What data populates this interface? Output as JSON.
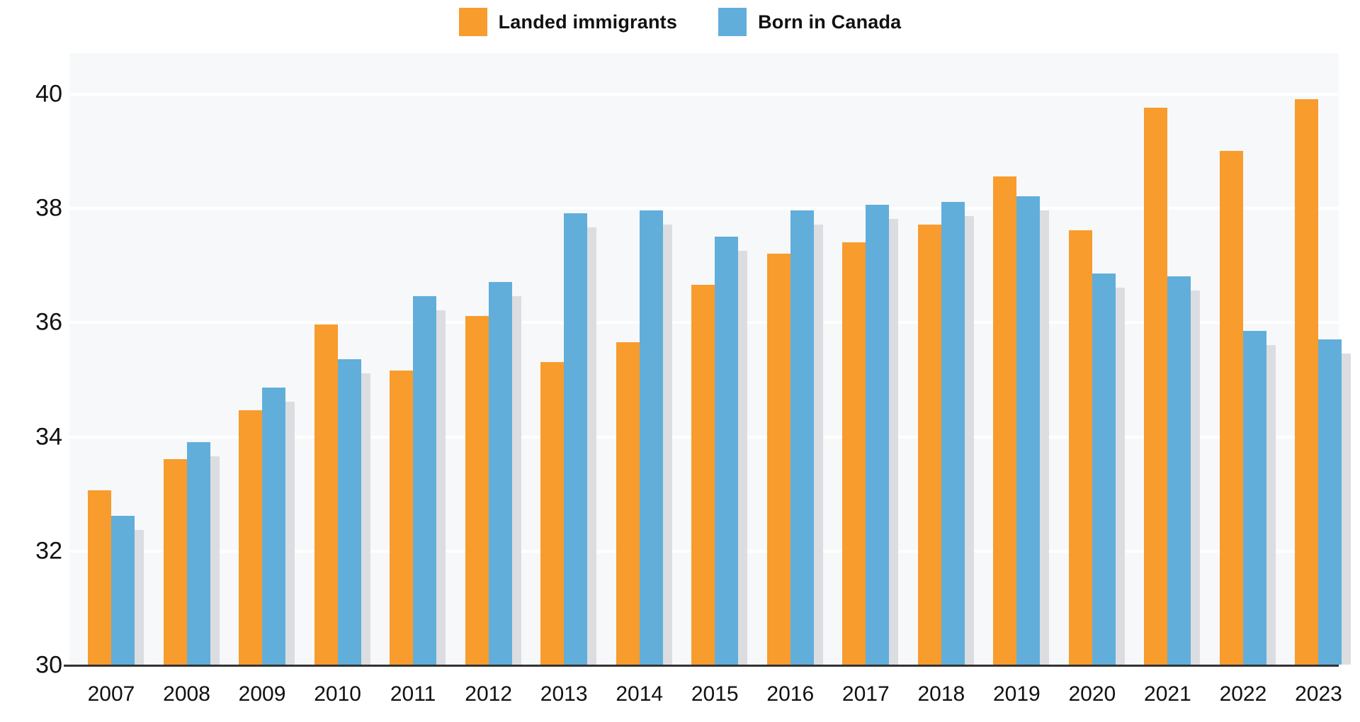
{
  "legend": {
    "items": [
      {
        "label": "Landed immigrants",
        "color": "#f89c2d"
      },
      {
        "label": "Born in Canada",
        "color": "#61aedb"
      }
    ]
  },
  "chart_data": {
    "type": "bar",
    "title": "",
    "xlabel": "",
    "ylabel": "",
    "categories": [
      "2007",
      "2008",
      "2009",
      "2010",
      "2011",
      "2012",
      "2013",
      "2014",
      "2015",
      "2016",
      "2017",
      "2018",
      "2019",
      "2020",
      "2021",
      "2022",
      "2023"
    ],
    "series": [
      {
        "name": "Landed immigrants",
        "color": "#f89c2d",
        "values": [
          33.05,
          33.6,
          34.45,
          35.95,
          35.15,
          36.1,
          35.3,
          35.65,
          36.65,
          37.2,
          37.4,
          37.7,
          38.55,
          37.6,
          39.75,
          39.0,
          39.9
        ]
      },
      {
        "name": "Born in Canada",
        "color": "#61aedb",
        "values": [
          32.6,
          33.9,
          34.85,
          35.35,
          36.45,
          36.7,
          37.9,
          37.95,
          37.5,
          37.95,
          38.05,
          38.1,
          38.2,
          36.85,
          36.8,
          35.85,
          35.7
        ]
      }
    ],
    "ylim": [
      30,
      40.7
    ],
    "yticks": [
      40,
      38,
      36,
      34,
      32,
      30
    ],
    "grid": true,
    "legend_position": "top",
    "plot_background": "#f7f8fa",
    "gridline_color": "#ffffff",
    "baseline_color": "#333333",
    "shadow_color": "#dcdde0"
  }
}
